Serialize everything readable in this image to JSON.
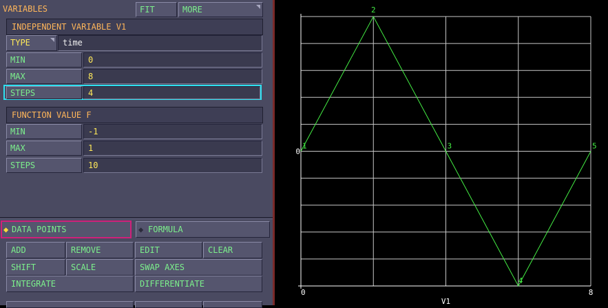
{
  "toolbar": {
    "title": "VARIABLES",
    "fit": "FIT",
    "more": "MORE"
  },
  "independent": {
    "header": "INDEPENDENT VARIABLE V1",
    "type_label": "TYPE",
    "type_value": "time",
    "min_label": "MIN",
    "min_value": "0",
    "max_label": "MAX",
    "max_value": "8",
    "steps_label": "STEPS",
    "steps_value": "4"
  },
  "function": {
    "header": "FUNCTION VALUE F",
    "min_label": "MIN",
    "min_value": "-1",
    "max_label": "MAX",
    "max_value": "1",
    "steps_label": "STEPS",
    "steps_value": "10"
  },
  "mode": {
    "data_points": "DATA POINTS",
    "formula": "FORMULA"
  },
  "actions": {
    "add": "ADD",
    "remove": "REMOVE",
    "edit": "EDIT",
    "clear": "CLEAR",
    "shift": "SHIFT",
    "scale": "SCALE",
    "swap_axes": "SWAP AXES",
    "integrate": "INTEGRATE",
    "differentiate": "DIFFERENTIATE"
  },
  "colors": {
    "grid": "#c8c8c8",
    "line": "#44ee44",
    "focus": "#2ee0f0",
    "selected": "#d0207a"
  },
  "chart_data": {
    "type": "line",
    "x": [
      0,
      2,
      4,
      6,
      8
    ],
    "series": [
      {
        "values": [
          0,
          1,
          0,
          -1,
          0
        ]
      }
    ],
    "point_labels": [
      "1",
      "2",
      "3",
      "4",
      "5"
    ],
    "xlabel": "V1",
    "ylabel": "",
    "xlim": [
      0,
      8
    ],
    "ylim": [
      -1,
      1
    ],
    "x_tick_labels": [
      "0",
      "8"
    ],
    "y_tick_labels": [
      "0"
    ],
    "x_grid_steps": 4,
    "y_grid_steps": 10,
    "grid": true
  }
}
